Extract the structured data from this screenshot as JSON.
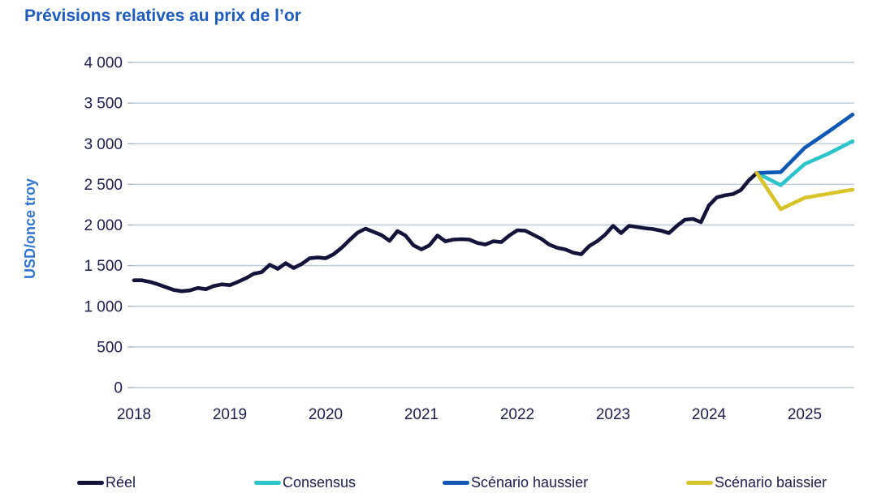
{
  "chart_data": {
    "type": "line",
    "title": "Prévisions relatives au prix de l’or",
    "ylabel": "USD/once troy",
    "ylim": [
      0,
      4000
    ],
    "ytick_step": 500,
    "x_tick_years": [
      2018,
      2019,
      2020,
      2021,
      2022,
      2023,
      2024,
      2025
    ],
    "grid": "horizontal",
    "legend_position": "bottom",
    "series": [
      {
        "name": "Réel",
        "role": "actual",
        "color": "#13123a",
        "x_start_month": "2018-01",
        "step_months": 1,
        "values": [
          1320,
          1320,
          1300,
          1270,
          1235,
          1200,
          1185,
          1195,
          1225,
          1210,
          1250,
          1270,
          1260,
          1300,
          1345,
          1400,
          1420,
          1510,
          1460,
          1530,
          1470,
          1520,
          1590,
          1600,
          1590,
          1640,
          1720,
          1815,
          1905,
          1955,
          1915,
          1875,
          1805,
          1925,
          1870,
          1750,
          1700,
          1750,
          1870,
          1800,
          1820,
          1825,
          1820,
          1780,
          1760,
          1800,
          1790,
          1870,
          1935,
          1930,
          1880,
          1830,
          1760,
          1720,
          1700,
          1660,
          1640,
          1740,
          1800,
          1880,
          1990,
          1900,
          1990,
          1975,
          1960,
          1950,
          1930,
          1900,
          1990,
          2065,
          2075,
          2035,
          2240,
          2340,
          2365,
          2380,
          2430,
          2550,
          2640
        ]
      },
      {
        "name": "Consensus",
        "role": "forecast",
        "color": "#2cc4cb",
        "dates": [
          "2024-07",
          "2024-10",
          "2025-01",
          "2025-04",
          "2025-07"
        ],
        "month_offsets": [
          78,
          81,
          84,
          87,
          90
        ],
        "values": [
          2640,
          2490,
          2750,
          2880,
          3030
        ]
      },
      {
        "name": "Scénario haussier",
        "role": "forecast",
        "color": "#0f57b4",
        "dates": [
          "2024-07",
          "2024-10",
          "2025-01",
          "2025-04",
          "2025-07"
        ],
        "month_offsets": [
          78,
          81,
          84,
          87,
          90
        ],
        "values": [
          2640,
          2650,
          2950,
          3150,
          3360
        ]
      },
      {
        "name": "Scénario baissier",
        "role": "forecast",
        "color": "#d8c32b",
        "dates": [
          "2024-07",
          "2024-10",
          "2025-01",
          "2025-04",
          "2025-07"
        ],
        "month_offsets": [
          78,
          81,
          84,
          87,
          90
        ],
        "values": [
          2640,
          2195,
          2335,
          2385,
          2435
        ]
      }
    ]
  }
}
